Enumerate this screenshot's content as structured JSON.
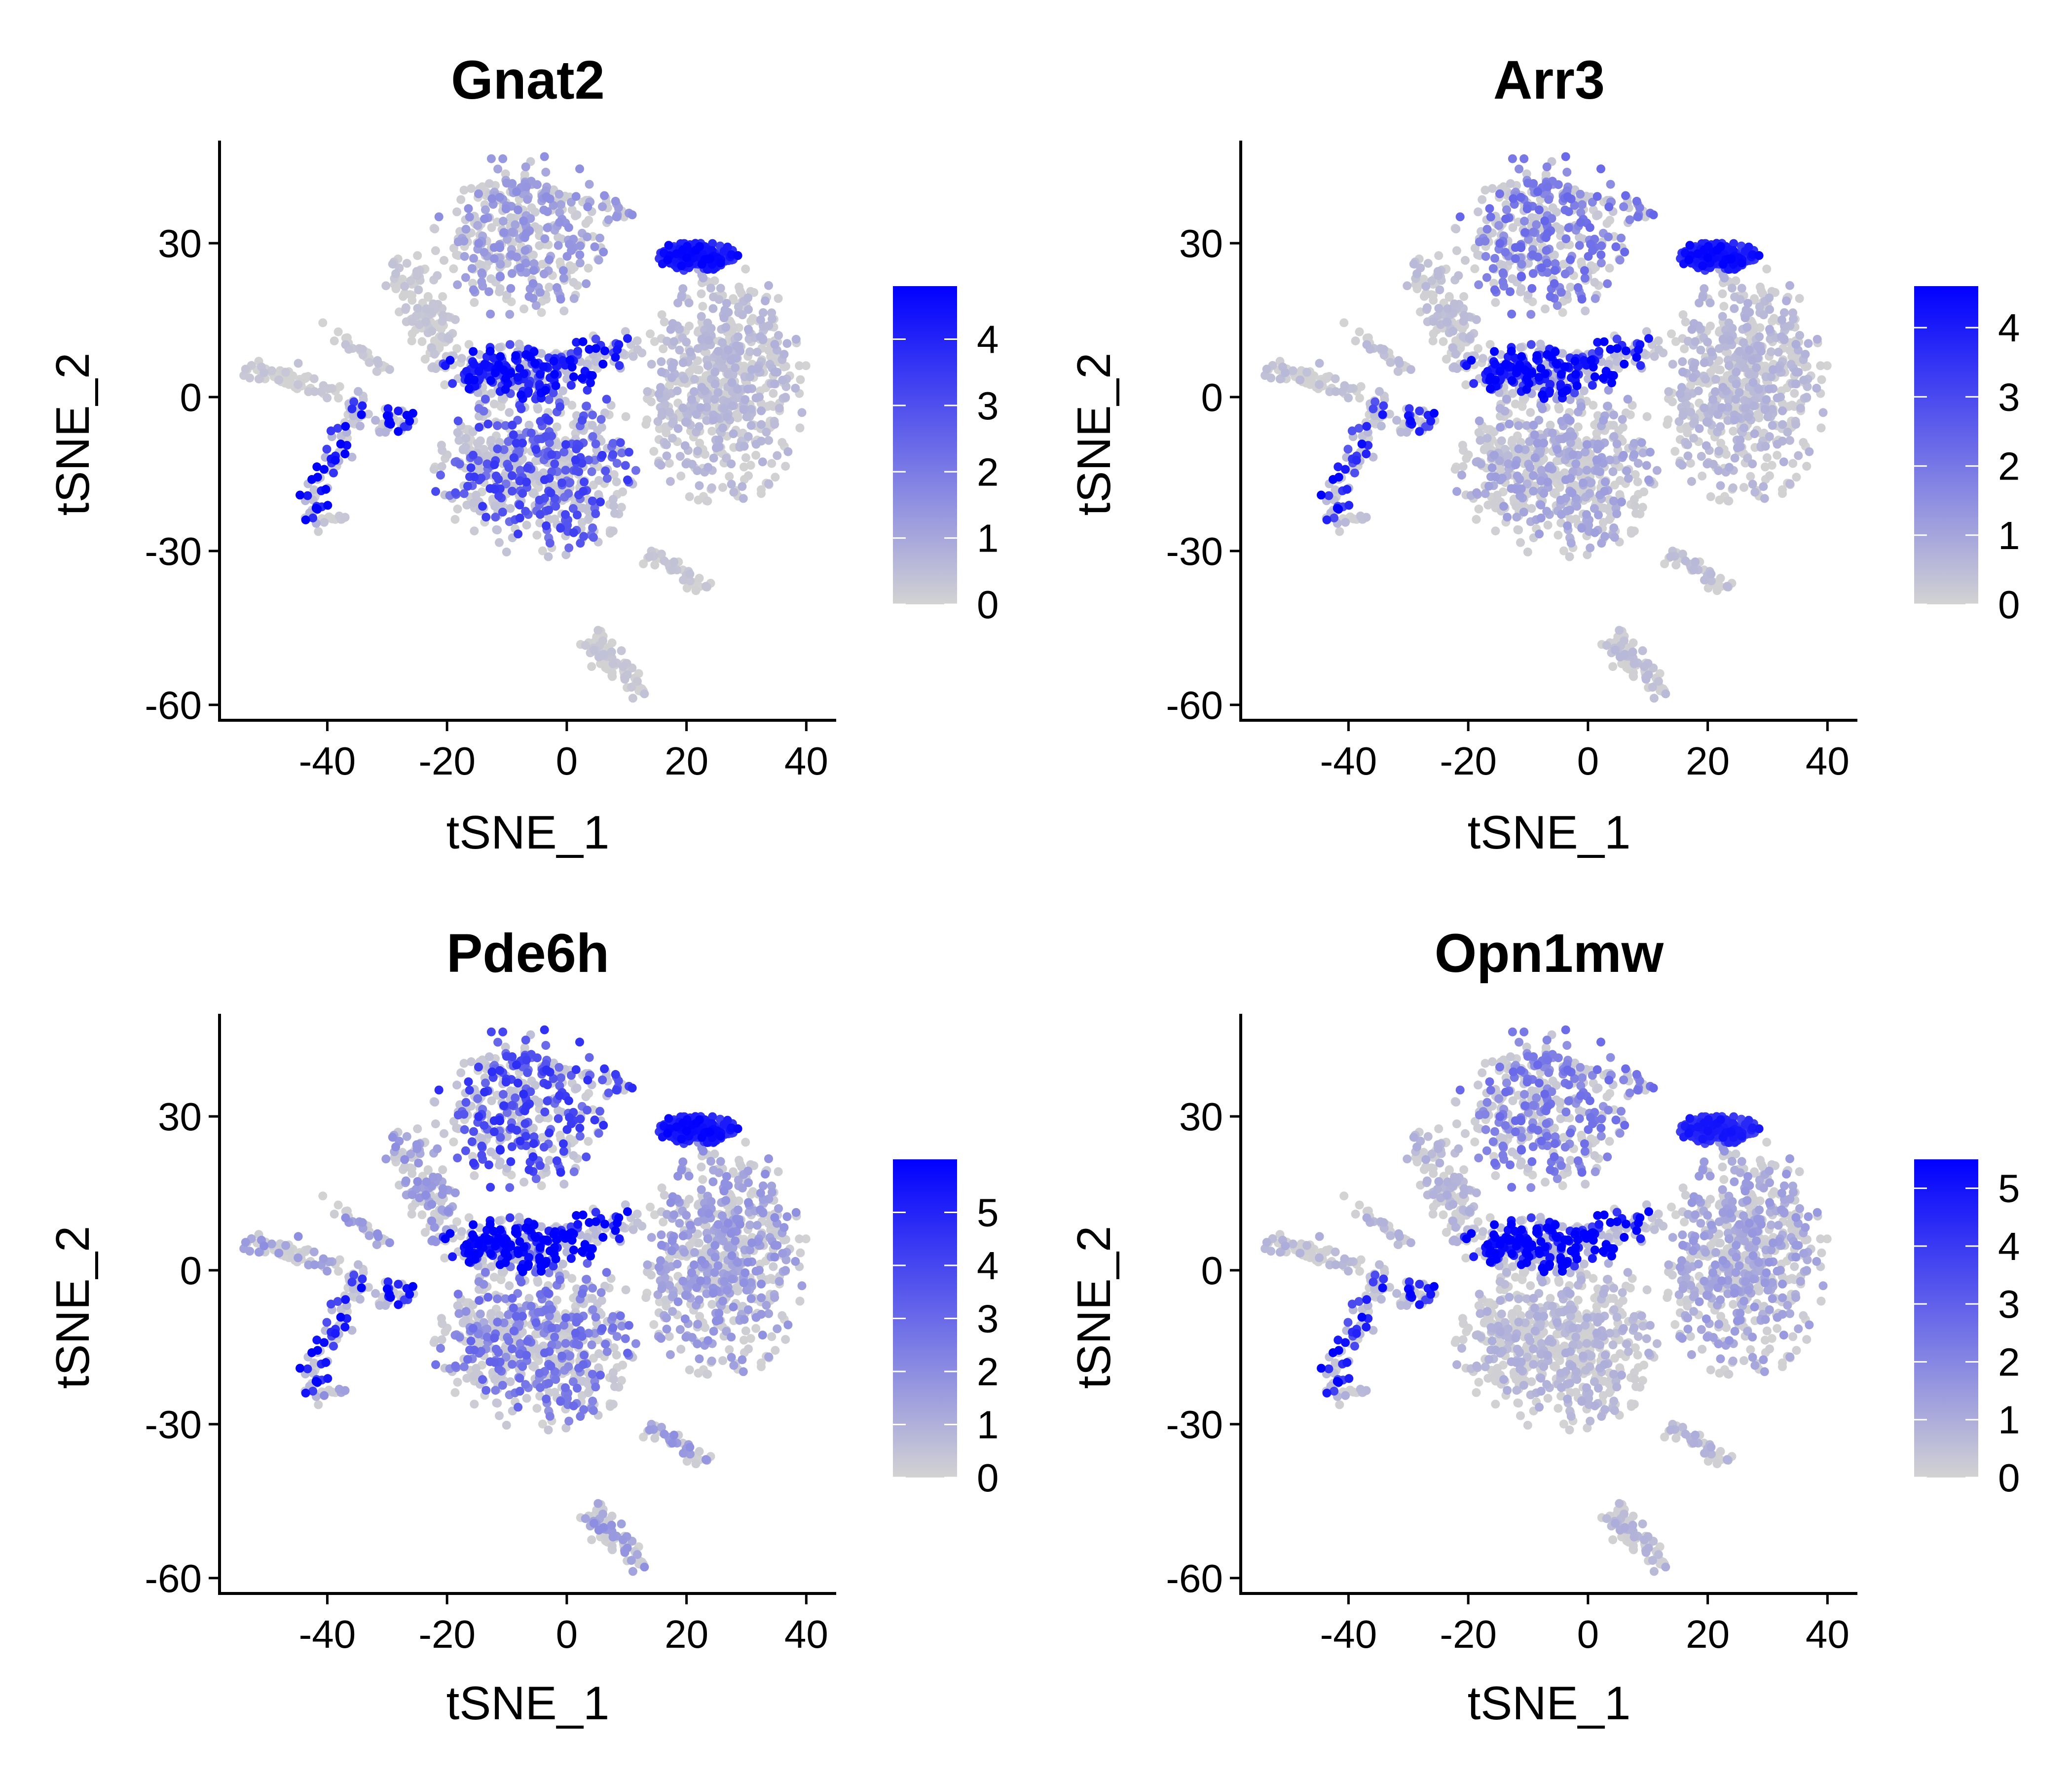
{
  "figure": {
    "layout": "2x2 grid of feature plots"
  },
  "chart_data": [
    {
      "type": "scatter",
      "title": "Gnat2",
      "xlabel": "tSNE_1",
      "ylabel": "tSNE_2",
      "xlim": [
        -58,
        45
      ],
      "ylim": [
        -63,
        50
      ],
      "xticks": [
        -40,
        -20,
        0,
        20,
        40
      ],
      "yticks": [
        -60,
        -30,
        0,
        30
      ],
      "grid": false,
      "legend": {
        "placement": "right",
        "min": 0,
        "max": 4.8,
        "ticks": [
          0,
          1,
          2,
          3,
          4
        ],
        "low_color": "#D3D3D3",
        "high_color": "#0000FF"
      },
      "expression": {
        "cluster_top_right": 4.2,
        "branch_center": 2.6,
        "lower_cluster": 1.8,
        "left_arm_blob": 3.0,
        "upper_cluster": 0.8,
        "right_cluster": 0.4,
        "default": 0.2
      }
    },
    {
      "type": "scatter",
      "title": "Arr3",
      "xlabel": "tSNE_1",
      "ylabel": "tSNE_2",
      "xlim": [
        -58,
        45
      ],
      "ylim": [
        -63,
        50
      ],
      "xticks": [
        -40,
        -20,
        0,
        20,
        40
      ],
      "yticks": [
        -60,
        -30,
        0,
        30
      ],
      "grid": false,
      "legend": {
        "placement": "right",
        "min": 0,
        "max": 4.6,
        "ticks": [
          0,
          1,
          2,
          3,
          4
        ],
        "low_color": "#D3D3D3",
        "high_color": "#0000FF"
      },
      "expression": {
        "cluster_top_right": 4.0,
        "branch_center": 2.6,
        "lower_cluster": 0.6,
        "left_arm_blob": 2.4,
        "upper_cluster": 1.2,
        "right_cluster": 0.4,
        "default": 0.3
      }
    },
    {
      "type": "scatter",
      "title": "Pde6h",
      "xlabel": "tSNE_1",
      "ylabel": "tSNE_2",
      "xlim": [
        -58,
        45
      ],
      "ylim": [
        -63,
        50
      ],
      "xticks": [
        -40,
        -20,
        0,
        20,
        40
      ],
      "yticks": [
        -60,
        -30,
        0,
        30
      ],
      "grid": false,
      "legend": {
        "placement": "right",
        "min": 0,
        "max": 6.0,
        "ticks": [
          0,
          1,
          2,
          3,
          4,
          5
        ],
        "low_color": "#D3D3D3",
        "high_color": "#0000FF"
      },
      "expression": {
        "cluster_top_right": 5.2,
        "branch_center": 3.8,
        "lower_cluster": 1.6,
        "left_arm_blob": 3.4,
        "upper_cluster": 2.4,
        "right_cluster": 1.0,
        "default": 1.0
      }
    },
    {
      "type": "scatter",
      "title": "Opn1mw",
      "xlabel": "tSNE_1",
      "ylabel": "tSNE_2",
      "xlim": [
        -58,
        45
      ],
      "ylim": [
        -63,
        50
      ],
      "xticks": [
        -40,
        -20,
        0,
        20,
        40
      ],
      "yticks": [
        -60,
        -30,
        0,
        30
      ],
      "grid": false,
      "legend": {
        "placement": "right",
        "min": 0,
        "max": 5.5,
        "ticks": [
          0,
          1,
          2,
          3,
          4,
          5
        ],
        "low_color": "#D3D3D3",
        "high_color": "#0000FF"
      },
      "expression": {
        "cluster_top_right": 4.4,
        "branch_center": 3.4,
        "lower_cluster": 0.5,
        "left_arm_blob": 3.0,
        "upper_cluster": 1.4,
        "right_cluster": 0.8,
        "default": 0.5
      }
    }
  ],
  "embedding": {
    "clusters": [
      {
        "name": "upper_cluster",
        "cx": -7,
        "cy": 31,
        "sx": 7,
        "sy": 8,
        "n": 340
      },
      {
        "name": "cluster_top_right",
        "cx": 22,
        "cy": 27.5,
        "sx": 3.2,
        "sy": 1.4,
        "n": 180
      },
      {
        "name": "right_cluster",
        "cx": 26,
        "cy": 2,
        "sx": 6.5,
        "sy": 11,
        "n": 620
      },
      {
        "name": "lower_cluster",
        "cx": -5,
        "cy": -14,
        "sx": 8,
        "sy": 8.5,
        "n": 560
      },
      {
        "name": "branch_center",
        "cx": -8,
        "cy": 5,
        "sx": 6,
        "sy": 2.5,
        "n": 260
      },
      {
        "name": "left_arm_blob",
        "cx": -29,
        "cy": -5,
        "sx": 2,
        "sy": 1.3,
        "n": 40
      }
    ],
    "paths": [
      {
        "name": "upper_cluster",
        "from": [
          -13,
          40
        ],
        "to": [
          12,
          36
        ],
        "w": 1.2,
        "n": 50
      },
      {
        "name": "default",
        "from": [
          -27,
          25
        ],
        "to": [
          -20,
          7
        ],
        "w": 2.0,
        "n": 120
      },
      {
        "name": "default",
        "from": [
          -53,
          5
        ],
        "to": [
          -38,
          1
        ],
        "w": 1.0,
        "n": 60
      },
      {
        "name": "default",
        "from": [
          -40,
          14
        ],
        "to": [
          -30,
          5
        ],
        "w": 0.6,
        "n": 30
      },
      {
        "name": "left_arm_blob",
        "from": [
          -34,
          0
        ],
        "to": [
          -44,
          -25
        ],
        "w": 1.3,
        "n": 80
      },
      {
        "name": "default",
        "from": [
          -40,
          -24
        ],
        "to": [
          -37,
          -23
        ],
        "w": 0.5,
        "n": 12
      },
      {
        "name": "branch_center",
        "from": [
          0,
          7
        ],
        "to": [
          12,
          10
        ],
        "w": 1.5,
        "n": 60
      },
      {
        "name": "default",
        "from": [
          13,
          -30
        ],
        "to": [
          25,
          -38
        ],
        "w": 0.7,
        "n": 40
      },
      {
        "name": "default",
        "from": [
          4,
          -47
        ],
        "to": [
          12,
          -57
        ],
        "w": 1.2,
        "n": 70
      },
      {
        "name": "default",
        "from": [
          -18,
          -8
        ],
        "to": [
          -12,
          -13
        ],
        "w": 1.0,
        "n": 25
      }
    ]
  }
}
